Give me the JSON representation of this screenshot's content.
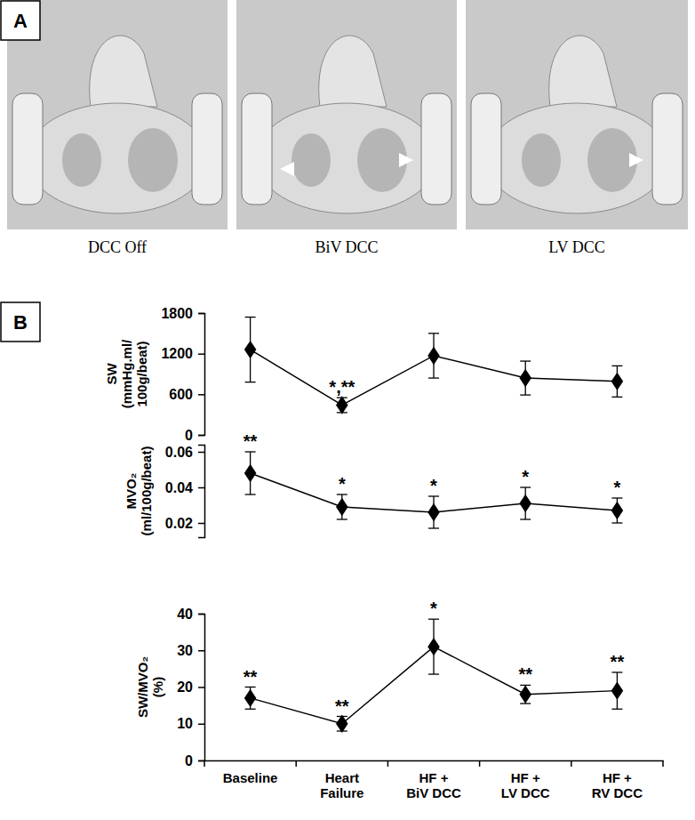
{
  "panel_a": {
    "label": "A",
    "captions": [
      "DCC Off",
      "BiV DCC",
      "LV DCC"
    ]
  },
  "panel_b": {
    "label": "B"
  },
  "chart_data": [
    {
      "type": "line",
      "categories": [
        null,
        null,
        null,
        null,
        null
      ],
      "y_label": "SW (mmHg.ml/100g/beat)",
      "values": [
        1260,
        440,
        1170,
        840,
        790
      ],
      "errors": [
        480,
        110,
        330,
        250,
        230
      ],
      "annotations": [
        null,
        "*,**",
        null,
        null,
        null
      ],
      "ylim": [
        0,
        1800
      ],
      "yticks": [
        0,
        600,
        1200,
        1800
      ],
      "color": "#000000",
      "marker": "diamond",
      "tick_labels": "y"
    },
    {
      "type": "line",
      "categories": [
        null,
        null,
        null,
        null,
        null
      ],
      "y_label": "MVO₂ (ml/100g/beat)",
      "values": [
        0.048,
        0.029,
        0.026,
        0.031,
        0.027
      ],
      "errors": [
        0.012,
        0.007,
        0.009,
        0.009,
        0.007
      ],
      "annotations": [
        "**",
        "*",
        "*",
        "*",
        "*"
      ],
      "ylim": [
        0.012,
        0.064
      ],
      "yticks": [
        0.02,
        0.04,
        0.06
      ],
      "color": "#000000",
      "marker": "diamond",
      "tick_labels": "y"
    },
    {
      "type": "line",
      "categories": [
        "Baseline",
        "Heart Failure",
        "HF + BiV DCC",
        "HF + LV DCC",
        "HF + RV DCC"
      ],
      "y_label": "SW/MVO₂ (%)",
      "values": [
        17,
        10,
        31,
        18,
        19
      ],
      "errors": [
        3,
        2,
        7.5,
        2.5,
        5
      ],
      "annotations": [
        "**",
        "**",
        "*",
        "**",
        "**"
      ],
      "ylim": [
        0,
        40
      ],
      "yticks": [
        0,
        10,
        20,
        30,
        40
      ],
      "color": "#000000",
      "marker": "diamond"
    }
  ]
}
